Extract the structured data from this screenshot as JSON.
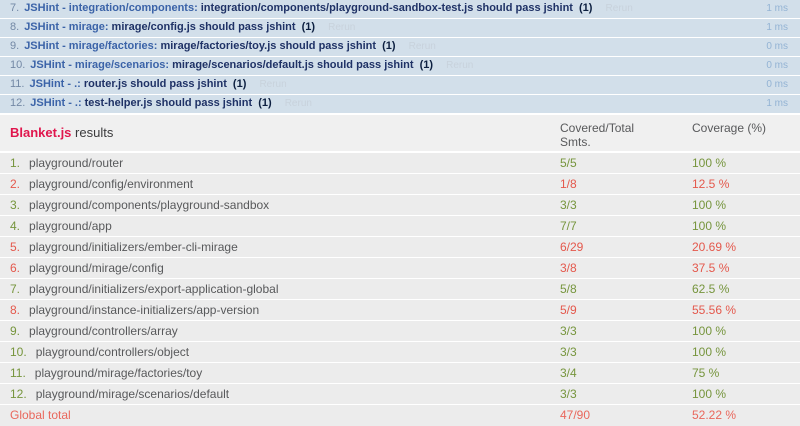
{
  "colors": {
    "test_row_bg": "#d2dfea",
    "module_blue": "#3b63a8",
    "test_name_navy": "#1f3266",
    "rerun_gray": "#c8d2dc",
    "runtime_blue": "#93b3d4",
    "coverage_row_bg": "#ececec",
    "pass_green": "#76953d",
    "fail_red": "#e4584c",
    "brand_crimson": "#e0164d",
    "text_gray": "#58595b"
  },
  "tests": {
    "items": [
      {
        "num": "7.",
        "module": "JSHint - integration/components:",
        "name": "integration/components/playground-sandbox-test.js should pass jshint",
        "counts": "(1)",
        "rerun": "Rerun",
        "runtime": "1 ms"
      },
      {
        "num": "8.",
        "module": "JSHint - mirage:",
        "name": "mirage/config.js should pass jshint",
        "counts": "(1)",
        "rerun": "Rerun",
        "runtime": "1 ms"
      },
      {
        "num": "9.",
        "module": "JSHint - mirage/factories:",
        "name": "mirage/factories/toy.js should pass jshint",
        "counts": "(1)",
        "rerun": "Rerun",
        "runtime": "0 ms"
      },
      {
        "num": "10.",
        "module": "JSHint - mirage/scenarios:",
        "name": "mirage/scenarios/default.js should pass jshint",
        "counts": "(1)",
        "rerun": "Rerun",
        "runtime": "0 ms"
      },
      {
        "num": "11.",
        "module": "JSHint - .:",
        "name": "router.js should pass jshint",
        "counts": "(1)",
        "rerun": "Rerun",
        "runtime": "0 ms"
      },
      {
        "num": "12.",
        "module": "JSHint - .:",
        "name": "test-helper.js should pass jshint",
        "counts": "(1)",
        "rerun": "Rerun",
        "runtime": "1 ms"
      }
    ]
  },
  "coverage": {
    "title_brand": "Blanket.js",
    "title_rest": "results",
    "col_covered": "Covered/Total Smts.",
    "col_coverage": "Coverage (%)",
    "rows": [
      {
        "num": "1.",
        "file": "playground/router",
        "covered": "5/5",
        "percent": "100 %",
        "status": "pass"
      },
      {
        "num": "2.",
        "file": "playground/config/environment",
        "covered": "1/8",
        "percent": "12.5 %",
        "status": "fail"
      },
      {
        "num": "3.",
        "file": "playground/components/playground-sandbox",
        "covered": "3/3",
        "percent": "100 %",
        "status": "pass"
      },
      {
        "num": "4.",
        "file": "playground/app",
        "covered": "7/7",
        "percent": "100 %",
        "status": "pass"
      },
      {
        "num": "5.",
        "file": "playground/initializers/ember-cli-mirage",
        "covered": "6/29",
        "percent": "20.69 %",
        "status": "fail"
      },
      {
        "num": "6.",
        "file": "playground/mirage/config",
        "covered": "3/8",
        "percent": "37.5 %",
        "status": "fail"
      },
      {
        "num": "7.",
        "file": "playground/initializers/export-application-global",
        "covered": "5/8",
        "percent": "62.5 %",
        "status": "pass"
      },
      {
        "num": "8.",
        "file": "playground/instance-initializers/app-version",
        "covered": "5/9",
        "percent": "55.56 %",
        "status": "fail"
      },
      {
        "num": "9.",
        "file": "playground/controllers/array",
        "covered": "3/3",
        "percent": "100 %",
        "status": "pass"
      },
      {
        "num": "10.",
        "file": "playground/controllers/object",
        "covered": "3/3",
        "percent": "100 %",
        "status": "pass"
      },
      {
        "num": "11.",
        "file": "playground/mirage/factories/toy",
        "covered": "3/4",
        "percent": "75 %",
        "status": "pass"
      },
      {
        "num": "12.",
        "file": "playground/mirage/scenarios/default",
        "covered": "3/3",
        "percent": "100 %",
        "status": "pass"
      }
    ],
    "total": {
      "label": "Global total",
      "covered": "47/90",
      "percent": "52.22 %"
    }
  }
}
